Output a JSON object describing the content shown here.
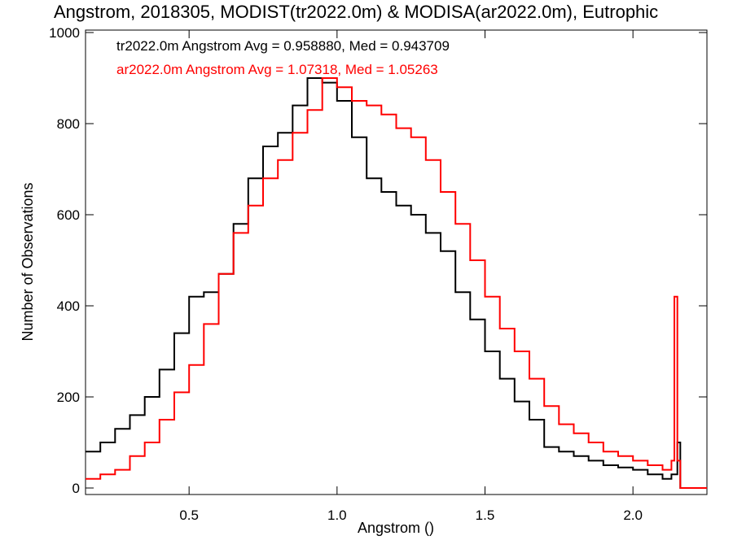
{
  "chart_data": {
    "type": "line",
    "title": "Angstrom, 2018305, MODIST(tr2022.0m) & MODISA(ar2022.0m), Eutrophic",
    "xlabel": "Angstrom ()",
    "ylabel": "Number of Observations",
    "xlim": [
      0.15,
      2.25
    ],
    "ylim": [
      0,
      1000
    ],
    "xticks": [
      "0.5",
      "1.0",
      "1.5",
      "2.0"
    ],
    "yticks": [
      "0",
      "200",
      "400",
      "600",
      "800",
      "1000"
    ],
    "legend_placement": "top-left",
    "series": [
      {
        "name": "tr2022.0m Angstrom Avg = 0.958880, Med = 0.943709",
        "color": "#000000",
        "x": [
          0.15,
          0.2,
          0.25,
          0.3,
          0.35,
          0.4,
          0.45,
          0.5,
          0.55,
          0.6,
          0.65,
          0.7,
          0.75,
          0.8,
          0.85,
          0.9,
          0.95,
          1.0,
          1.05,
          1.1,
          1.15,
          1.2,
          1.25,
          1.3,
          1.35,
          1.4,
          1.45,
          1.5,
          1.55,
          1.6,
          1.65,
          1.7,
          1.75,
          1.8,
          1.85,
          1.9,
          1.95,
          2.0,
          2.05,
          2.1,
          2.13,
          2.15,
          2.16,
          2.25
        ],
        "y": [
          80,
          100,
          130,
          160,
          200,
          260,
          340,
          420,
          430,
          470,
          580,
          680,
          750,
          780,
          840,
          900,
          890,
          850,
          770,
          680,
          650,
          620,
          600,
          560,
          520,
          430,
          370,
          300,
          240,
          190,
          150,
          90,
          80,
          70,
          60,
          50,
          45,
          40,
          30,
          20,
          30,
          100,
          0,
          0
        ]
      },
      {
        "name": "ar2022.0m Angstrom Avg = 1.07318, Med = 1.05263",
        "color": "#ff0000",
        "x": [
          0.15,
          0.2,
          0.25,
          0.3,
          0.35,
          0.4,
          0.45,
          0.5,
          0.55,
          0.6,
          0.65,
          0.7,
          0.75,
          0.8,
          0.85,
          0.9,
          0.95,
          1.0,
          1.05,
          1.1,
          1.15,
          1.2,
          1.25,
          1.3,
          1.35,
          1.4,
          1.45,
          1.5,
          1.55,
          1.6,
          1.65,
          1.7,
          1.75,
          1.8,
          1.85,
          1.9,
          1.95,
          2.0,
          2.05,
          2.1,
          2.13,
          2.14,
          2.15,
          2.16,
          2.25
        ],
        "y": [
          20,
          30,
          40,
          70,
          100,
          150,
          210,
          270,
          360,
          470,
          560,
          620,
          680,
          720,
          780,
          830,
          900,
          880,
          850,
          840,
          820,
          790,
          770,
          720,
          650,
          580,
          500,
          420,
          350,
          300,
          240,
          180,
          140,
          120,
          100,
          80,
          70,
          60,
          50,
          40,
          60,
          420,
          60,
          0,
          0
        ]
      }
    ]
  }
}
